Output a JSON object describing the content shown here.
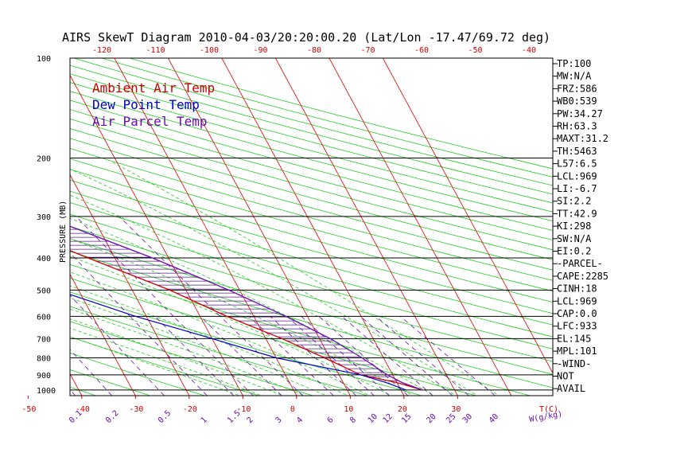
{
  "chart_data": {
    "type": "line",
    "title": "AIRS SkewT Diagram 2010-04-03/20:20:00.20 (Lat/Lon -17.47/69.72 deg)",
    "ylabel": "PRESSURE (MB)",
    "x_unit_label": "T(C)",
    "mixing_ratio_unit_label": "W(g/kg)",
    "ylim": [
      1040,
      100
    ],
    "y_scale": "log",
    "pressure_ticks": [
      100,
      200,
      300,
      400,
      500,
      600,
      700,
      800,
      900,
      1000
    ],
    "bottom_temp_ticks": [
      -50,
      -40,
      -30,
      -20,
      -10,
      0,
      10,
      20,
      30
    ],
    "top_temp_ticks": [
      -120,
      -110,
      -100,
      -90,
      -80,
      -70,
      -60,
      -50,
      -40
    ],
    "mixing_ratio_ticks": [
      "0.1",
      "0.2",
      "0.5",
      "1",
      "1.5",
      "2",
      "3",
      "4",
      "6",
      "8",
      "10",
      "12",
      "15",
      "20",
      "25",
      "30",
      "40"
    ],
    "legend": [
      {
        "name": "Ambient Air Temp",
        "color": "#cc0000"
      },
      {
        "name": "Dew Point Temp",
        "color": "#0000cc"
      },
      {
        "name": "Air Parcel Temp",
        "color": "#6a0dad"
      }
    ],
    "series": [
      {
        "name": "Ambient Air Temp",
        "color": "#cc0000",
        "points": [
          {
            "p": 100,
            "t": -81
          },
          {
            "p": 150,
            "t": -81
          },
          {
            "p": 170,
            "t": -76
          },
          {
            "p": 200,
            "t": -64
          },
          {
            "p": 250,
            "t": -50
          },
          {
            "p": 300,
            "t": -40
          },
          {
            "p": 400,
            "t": -25
          },
          {
            "p": 500,
            "t": -13
          },
          {
            "p": 600,
            "t": -5
          },
          {
            "p": 700,
            "t": 3
          },
          {
            "p": 800,
            "t": 9
          },
          {
            "p": 900,
            "t": 14
          },
          {
            "p": 950,
            "t": 20
          },
          {
            "p": 1000,
            "t": 24
          }
        ]
      },
      {
        "name": "Dew Point Temp",
        "color": "#0000cc",
        "points": [
          {
            "p": 100,
            "t": -89
          },
          {
            "p": 150,
            "t": -89
          },
          {
            "p": 200,
            "t": -93
          },
          {
            "p": 250,
            "t": -88
          },
          {
            "p": 300,
            "t": -78
          },
          {
            "p": 400,
            "t": -52
          },
          {
            "p": 500,
            "t": -34
          },
          {
            "p": 600,
            "t": -22
          },
          {
            "p": 700,
            "t": -10
          },
          {
            "p": 800,
            "t": 0
          },
          {
            "p": 900,
            "t": 14
          },
          {
            "p": 950,
            "t": 18
          },
          {
            "p": 1000,
            "t": 21
          }
        ]
      },
      {
        "name": "Air Parcel Temp",
        "color": "#6a0dad",
        "points": [
          {
            "p": 150,
            "t": -81
          },
          {
            "p": 200,
            "t": -57
          },
          {
            "p": 250,
            "t": -40
          },
          {
            "p": 300,
            "t": -29
          },
          {
            "p": 400,
            "t": -13
          },
          {
            "p": 500,
            "t": -2
          },
          {
            "p": 600,
            "t": 6
          },
          {
            "p": 700,
            "t": 12
          },
          {
            "p": 800,
            "t": 16
          },
          {
            "p": 900,
            "t": 19
          },
          {
            "p": 950,
            "t": 21
          },
          {
            "p": 1000,
            "t": 24
          }
        ]
      }
    ],
    "stats": [
      "TP:100",
      "MW:N/A",
      "FRZ:586",
      "WB0:539",
      "PW:34.27",
      "RH:63.3",
      "MAXT:31.2",
      "TH:5463",
      "L57:6.5",
      "LCL:969",
      "LI:-6.7",
      "SI:2.2",
      "TT:42.9",
      "KI:298",
      "SW:N/A",
      "EI:0.2",
      "-PARCEL-",
      "CAPE:2285",
      "CINH:18",
      "LCL:969",
      "CAP:0.0",
      "LFC:933",
      "EL:145",
      "MPL:101",
      "-WIND-",
      "NOT",
      "AVAIL"
    ]
  }
}
